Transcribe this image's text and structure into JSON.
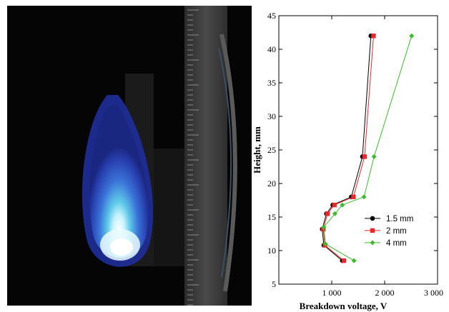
{
  "photo": {
    "description_icon": "flame-photo"
  },
  "chart_data": {
    "type": "line",
    "xlabel": "Breakdown voltage, V",
    "ylabel": "Height, mm",
    "xlim": [
      0,
      3000
    ],
    "ylim": [
      5,
      45
    ],
    "xticks": [
      1000,
      2000,
      3000
    ],
    "xtick_labels": [
      "1 000",
      "2 000",
      "3 000"
    ],
    "yticks": [
      5,
      10,
      15,
      20,
      25,
      30,
      35,
      40,
      45
    ],
    "legend_position": "bottom-right",
    "grid": false,
    "series": [
      {
        "name": "1.5 mm",
        "color": "#000000",
        "marker": "circle",
        "points": [
          [
            1200,
            8.5
          ],
          [
            850,
            10.8
          ],
          [
            820,
            13.2
          ],
          [
            900,
            15.5
          ],
          [
            1020,
            16.8
          ],
          [
            1370,
            18
          ],
          [
            1580,
            24
          ],
          [
            1740,
            42
          ]
        ]
      },
      {
        "name": "2 mm",
        "color": "#e8282b",
        "marker": "square",
        "points": [
          [
            1230,
            8.5
          ],
          [
            870,
            10.8
          ],
          [
            840,
            13.2
          ],
          [
            920,
            15.5
          ],
          [
            1050,
            16.8
          ],
          [
            1410,
            18
          ],
          [
            1620,
            24
          ],
          [
            1790,
            42
          ]
        ]
      },
      {
        "name": "4 mm",
        "color": "#3fba2e",
        "marker": "diamond",
        "points": [
          [
            1420,
            8.5
          ],
          [
            880,
            11
          ],
          [
            850,
            13.5
          ],
          [
            1060,
            15.5
          ],
          [
            1200,
            16.8
          ],
          [
            1610,
            18
          ],
          [
            1800,
            24
          ],
          [
            2510,
            42
          ]
        ]
      }
    ]
  }
}
